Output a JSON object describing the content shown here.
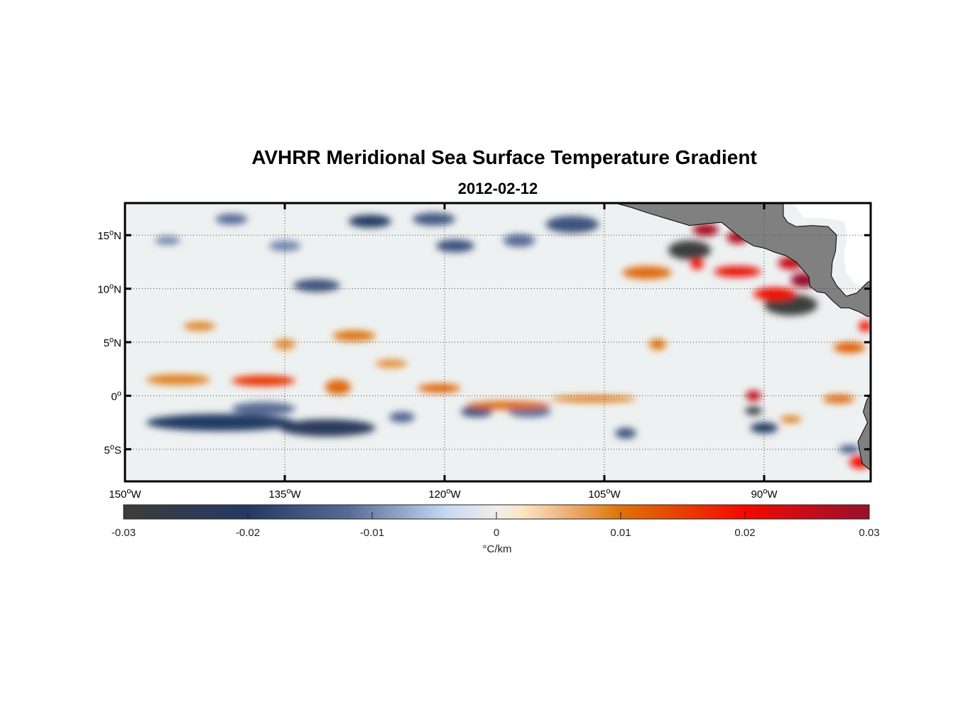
{
  "title": "AVHRR Meridional Sea Surface Temperature Gradient",
  "subtitle": "2012-02-12",
  "chart_data": {
    "type": "heatmap",
    "title": "AVHRR Meridional Sea Surface Temperature Gradient",
    "subtitle": "2012-02-12",
    "lon_range": [
      -150,
      -80
    ],
    "lat_range": [
      -8,
      18
    ],
    "grid": true,
    "x_ticks": [
      {
        "value": -150,
        "num": "150",
        "hem": "W"
      },
      {
        "value": -135,
        "num": "135",
        "hem": "W"
      },
      {
        "value": -120,
        "num": "120",
        "hem": "W"
      },
      {
        "value": -105,
        "num": "105",
        "hem": "W"
      },
      {
        "value": -90,
        "num": "90",
        "hem": "W"
      }
    ],
    "y_ticks": [
      {
        "value": 15,
        "num": "15",
        "hem": "N"
      },
      {
        "value": 10,
        "num": "10",
        "hem": "N"
      },
      {
        "value": 5,
        "num": "5",
        "hem": "N"
      },
      {
        "value": 0,
        "num": "0",
        "hem": ""
      },
      {
        "value": -5,
        "num": "5",
        "hem": "S"
      }
    ],
    "colorbar": {
      "range": [
        -0.03,
        0.03
      ],
      "ticks": [
        "-0.03",
        "-0.02",
        "-0.01",
        "0",
        "0.01",
        "0.02",
        "0.03"
      ],
      "label": "°C/km",
      "stops": [
        {
          "v": -0.03,
          "c": "#3c3c3c"
        },
        {
          "v": -0.02,
          "c": "#243a64"
        },
        {
          "v": -0.012,
          "c": "#566a96"
        },
        {
          "v": -0.004,
          "c": "#c6d8f2"
        },
        {
          "v": 0.0,
          "c": "#eeefec"
        },
        {
          "v": 0.002,
          "c": "#fde6c6"
        },
        {
          "v": 0.005,
          "c": "#eebb88"
        },
        {
          "v": 0.01,
          "c": "#dd7308"
        },
        {
          "v": 0.02,
          "c": "#f20a00"
        },
        {
          "v": 0.03,
          "c": "#98102e"
        }
      ]
    },
    "features": [
      {
        "lon": -141,
        "lat": -2.5,
        "rx": 7,
        "ry": 0.8,
        "value": -0.02
      },
      {
        "lon": -131,
        "lat": -3,
        "rx": 4.5,
        "ry": 0.8,
        "value": -0.022
      },
      {
        "lon": -137,
        "lat": -1.2,
        "rx": 3,
        "ry": 0.6,
        "value": -0.012
      },
      {
        "lon": -127,
        "lat": 16.3,
        "rx": 2,
        "ry": 0.6,
        "value": -0.02
      },
      {
        "lon": -121,
        "lat": 16.5,
        "rx": 2,
        "ry": 0.6,
        "value": -0.015
      },
      {
        "lon": -119,
        "lat": 14,
        "rx": 1.8,
        "ry": 0.6,
        "value": -0.016
      },
      {
        "lon": -140,
        "lat": 16.5,
        "rx": 1.5,
        "ry": 0.5,
        "value": -0.012
      },
      {
        "lon": -108,
        "lat": 16,
        "rx": 2.5,
        "ry": 0.8,
        "value": -0.016
      },
      {
        "lon": -113,
        "lat": 14.5,
        "rx": 1.5,
        "ry": 0.6,
        "value": -0.012
      },
      {
        "lon": -132,
        "lat": 10.3,
        "rx": 2.2,
        "ry": 0.6,
        "value": -0.016
      },
      {
        "lon": -135,
        "lat": 14,
        "rx": 1.5,
        "ry": 0.5,
        "value": -0.01
      },
      {
        "lon": -146,
        "lat": 14.5,
        "rx": 1.2,
        "ry": 0.4,
        "value": -0.01
      },
      {
        "lon": -97,
        "lat": 13.6,
        "rx": 2,
        "ry": 0.9,
        "value": -0.03
      },
      {
        "lon": -87.5,
        "lat": 8.5,
        "rx": 2.5,
        "ry": 1.0,
        "value": -0.03
      },
      {
        "lon": -90,
        "lat": -3,
        "rx": 1.3,
        "ry": 0.5,
        "value": -0.02
      },
      {
        "lon": -91,
        "lat": -1.4,
        "rx": 0.8,
        "ry": 0.4,
        "value": -0.028
      },
      {
        "lon": -112,
        "lat": -1.5,
        "rx": 2,
        "ry": 0.5,
        "value": -0.012
      },
      {
        "lon": -103,
        "lat": -3.5,
        "rx": 1,
        "ry": 0.5,
        "value": -0.016
      },
      {
        "lon": -117,
        "lat": -1.5,
        "rx": 1.5,
        "ry": 0.5,
        "value": -0.016
      },
      {
        "lon": -124,
        "lat": -2,
        "rx": 1.2,
        "ry": 0.5,
        "value": -0.013
      },
      {
        "lon": -82,
        "lat": -5,
        "rx": 1,
        "ry": 0.4,
        "value": -0.014
      },
      {
        "lon": -145,
        "lat": 1.5,
        "rx": 3,
        "ry": 0.5,
        "value": 0.009
      },
      {
        "lon": -137,
        "lat": 1.4,
        "rx": 3,
        "ry": 0.5,
        "value": 0.016
      },
      {
        "lon": -130,
        "lat": 0.8,
        "rx": 1.2,
        "ry": 0.7,
        "value": 0.011
      },
      {
        "lon": -120.5,
        "lat": 0.7,
        "rx": 2,
        "ry": 0.4,
        "value": 0.012
      },
      {
        "lon": -114,
        "lat": -0.9,
        "rx": 4,
        "ry": 0.4,
        "value": 0.011
      },
      {
        "lon": -106,
        "lat": -0.3,
        "rx": 4,
        "ry": 0.3,
        "value": 0.01
      },
      {
        "lon": -128.5,
        "lat": 5.6,
        "rx": 2,
        "ry": 0.5,
        "value": 0.01
      },
      {
        "lon": -135,
        "lat": 4.8,
        "rx": 1,
        "ry": 0.5,
        "value": 0.008
      },
      {
        "lon": -143,
        "lat": 6.5,
        "rx": 1.5,
        "ry": 0.4,
        "value": 0.009
      },
      {
        "lon": -125,
        "lat": 3,
        "rx": 1.5,
        "ry": 0.4,
        "value": 0.008
      },
      {
        "lon": -101,
        "lat": 11.5,
        "rx": 2.3,
        "ry": 0.6,
        "value": 0.011
      },
      {
        "lon": -100,
        "lat": 4.8,
        "rx": 0.8,
        "ry": 0.5,
        "value": 0.01
      },
      {
        "lon": -95.5,
        "lat": 15.5,
        "rx": 1.2,
        "ry": 0.6,
        "value": 0.028
      },
      {
        "lon": -92.5,
        "lat": 14.8,
        "rx": 1,
        "ry": 0.6,
        "value": 0.027
      },
      {
        "lon": -96.3,
        "lat": 12.3,
        "rx": 0.6,
        "ry": 0.5,
        "value": 0.02
      },
      {
        "lon": -92.5,
        "lat": 11.6,
        "rx": 2.2,
        "ry": 0.5,
        "value": 0.021
      },
      {
        "lon": -87.5,
        "lat": 12.4,
        "rx": 1.2,
        "ry": 0.6,
        "value": 0.025
      },
      {
        "lon": -86.3,
        "lat": 10.8,
        "rx": 1.2,
        "ry": 0.7,
        "value": 0.03
      },
      {
        "lon": -89,
        "lat": 9.5,
        "rx": 2,
        "ry": 0.6,
        "value": 0.02
      },
      {
        "lon": -91,
        "lat": 0.0,
        "rx": 0.7,
        "ry": 0.5,
        "value": 0.025
      },
      {
        "lon": -82,
        "lat": 4.5,
        "rx": 1.5,
        "ry": 0.5,
        "value": 0.012
      },
      {
        "lon": -80.5,
        "lat": 6.5,
        "rx": 0.6,
        "ry": 0.5,
        "value": 0.02
      },
      {
        "lon": -81,
        "lat": -6.2,
        "rx": 1,
        "ry": 0.6,
        "value": 0.02
      },
      {
        "lon": -83,
        "lat": -0.3,
        "rx": 1.5,
        "ry": 0.4,
        "value": 0.011
      },
      {
        "lon": -87.5,
        "lat": -2.2,
        "rx": 1,
        "ry": 0.3,
        "value": 0.01
      }
    ]
  }
}
